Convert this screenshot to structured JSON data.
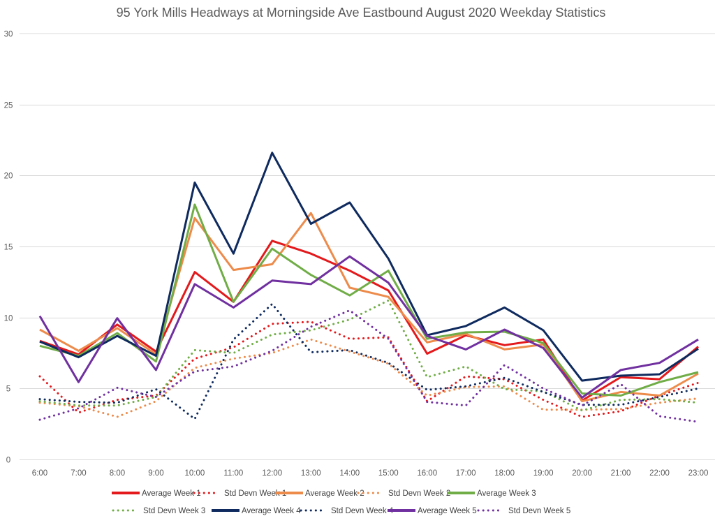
{
  "chart_data": {
    "type": "line",
    "title": "95 York Mills Headways at Morningside Ave Eastbound August 2020 Weekday Statistics",
    "xlabel": "",
    "ylabel": "",
    "ylim": [
      0,
      30
    ],
    "yticks": [
      0,
      5,
      10,
      15,
      20,
      25,
      30
    ],
    "grid": true,
    "legend_position": "bottom",
    "categories": [
      "6:00",
      "7:00",
      "8:00",
      "9:00",
      "10:00",
      "11:00",
      "12:00",
      "13:00",
      "14:00",
      "15:00",
      "16:00",
      "17:00",
      "18:00",
      "19:00",
      "20:00",
      "21:00",
      "22:00",
      "23:00"
    ],
    "series": [
      {
        "name": "Average Week 1",
        "style": "solid",
        "color": "#e3191c",
        "values": [
          8.35,
          7.4,
          9.5,
          7.6,
          13.2,
          11.1,
          15.4,
          14.5,
          13.3,
          11.9,
          7.45,
          8.75,
          8.05,
          8.45,
          4.15,
          5.8,
          5.65,
          7.95
        ]
      },
      {
        "name": "Std Devn Week 1",
        "style": "dotted",
        "color": "#e3191c",
        "values": [
          5.85,
          3.3,
          4.2,
          4.5,
          7.1,
          7.9,
          9.55,
          9.7,
          8.5,
          8.6,
          4.1,
          5.85,
          5.65,
          4.2,
          3.0,
          3.4,
          4.5,
          5.4
        ]
      },
      {
        "name": "Average Week 2",
        "style": "solid",
        "color": "#ed8b4b",
        "values": [
          9.15,
          7.65,
          9.25,
          7.4,
          17.0,
          13.35,
          13.75,
          17.35,
          12.1,
          11.45,
          8.25,
          8.85,
          7.75,
          8.1,
          4.1,
          4.75,
          4.5,
          6.05
        ]
      },
      {
        "name": "Std Devn Week 2",
        "style": "dotted",
        "color": "#ed8b4b",
        "values": [
          4.0,
          3.75,
          3.0,
          4.1,
          6.45,
          7.1,
          7.5,
          8.45,
          7.6,
          6.75,
          4.5,
          5.1,
          5.15,
          3.5,
          3.5,
          3.55,
          4.0,
          4.3
        ]
      },
      {
        "name": "Average Week 3",
        "style": "solid",
        "color": "#70ad47",
        "values": [
          8.0,
          7.3,
          8.9,
          6.9,
          17.95,
          11.1,
          14.85,
          13.0,
          11.55,
          13.3,
          8.5,
          8.95,
          9.0,
          8.2,
          4.65,
          4.5,
          5.45,
          6.15
        ]
      },
      {
        "name": "Std Devn Week 3",
        "style": "dotted",
        "color": "#70ad47",
        "values": [
          4.1,
          3.8,
          3.8,
          4.4,
          7.7,
          7.5,
          8.8,
          9.1,
          9.85,
          11.2,
          5.8,
          6.55,
          4.95,
          4.8,
          3.45,
          4.2,
          4.25,
          4.0
        ]
      },
      {
        "name": "Average Week 4",
        "style": "solid",
        "color": "#0e2a5e",
        "values": [
          8.3,
          7.2,
          8.7,
          7.3,
          19.5,
          14.5,
          21.6,
          16.6,
          18.1,
          14.15,
          8.75,
          9.4,
          10.7,
          9.1,
          5.55,
          5.9,
          6.0,
          7.8
        ]
      },
      {
        "name": "Std Devn Week 4",
        "style": "dotted",
        "color": "#0e2a5e",
        "values": [
          4.25,
          4.05,
          4.0,
          4.95,
          2.85,
          8.45,
          10.95,
          7.55,
          7.7,
          6.8,
          4.9,
          5.15,
          5.75,
          4.75,
          3.85,
          3.85,
          4.4,
          5.0
        ]
      },
      {
        "name": "Average Week 5",
        "style": "solid",
        "color": "#7030a0",
        "values": [
          10.1,
          5.45,
          9.95,
          6.3,
          12.35,
          10.7,
          12.6,
          12.35,
          14.3,
          12.45,
          8.7,
          7.75,
          9.15,
          7.85,
          4.35,
          6.3,
          6.8,
          8.45
        ]
      },
      {
        "name": "Std Devn Week 5",
        "style": "dotted",
        "color": "#7030a0",
        "values": [
          2.8,
          3.6,
          5.05,
          4.4,
          6.2,
          6.55,
          7.65,
          9.35,
          10.5,
          8.5,
          4.05,
          3.8,
          6.65,
          5.0,
          3.8,
          5.3,
          3.05,
          2.65
        ]
      }
    ]
  }
}
